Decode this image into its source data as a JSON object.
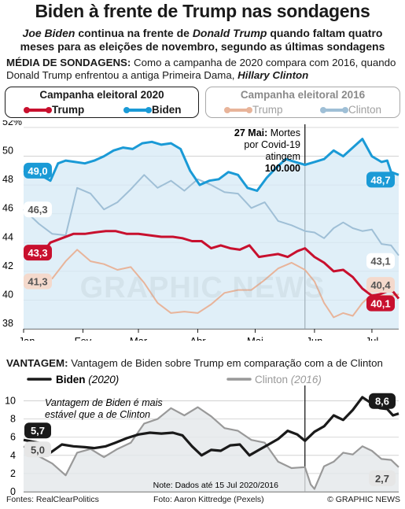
{
  "header": {
    "title": "Biden à frente de Trump nas sondagens",
    "subtitle_parts": [
      "Joe Biden",
      " continua na frente de ",
      "Donald Trump",
      " quando faltam quatro meses para as eleições de novembro, segundo as últimas sondagens"
    ]
  },
  "section1": {
    "label": "MÉDIA DE SONDAGENS:",
    "text": " Como a campanha de 2020 compara com 2016, quando Donald Trump enfrentou a antiga Primeira Dama, ",
    "name": "Hillary Clinton"
  },
  "legend": {
    "box2020": {
      "title": "Campanha eleitoral 2020",
      "trump": "Trump",
      "biden": "Biden"
    },
    "box2016": {
      "title": "Campanha eleitoral 2016",
      "trump": "Trump",
      "clinton": "Clinton"
    }
  },
  "colors": {
    "trump2020": "#c8102e",
    "biden2020": "#1a9ad6",
    "trump2016": "#e8b49a",
    "clinton2016": "#9fbfd6",
    "black": "#1a1a1a",
    "gray2016": "#999999",
    "bidenFill": "#d6e9f5"
  },
  "annotation": {
    "date": "27 Mai:",
    "line1": " Mortes",
    "line2": "por Covid-19",
    "line3": "atingem",
    "value": "100.000"
  },
  "section2": {
    "label": "VANTAGEM:",
    "text": " Vantagem de Biden sobre Trump em comparação com a de Clinton",
    "legend_biden": "Biden",
    "legend_biden_year": "(2020)",
    "legend_clinton": "Clinton",
    "legend_clinton_year": "(2016)",
    "note_line1": "Vantagem de Biden é mais",
    "note_line2": "estável que a de Clinton"
  },
  "note": "Note: Dados até 15 Jul 2020/2016",
  "watermark": "GRAPHIC NEWS",
  "footer": {
    "source": "Fontes: RealClearPolitics",
    "photo": "Foto: Aaron Kittredge (Pexels)",
    "copyright": "© GRAPHIC NEWS"
  },
  "chart_data": [
    {
      "type": "line",
      "title": "Média de sondagens",
      "x_unit": "days since 1 Jan",
      "xticks": [
        "Jan",
        "Fev",
        "Mar",
        "Abr",
        "Mai",
        "Jun",
        "Jul"
      ],
      "xtick_days": [
        0,
        31,
        60,
        91,
        121,
        152,
        182
      ],
      "xlim": [
        0,
        196
      ],
      "yticks": [
        "38",
        "40",
        "42",
        "44",
        "46",
        "48",
        "50",
        "52%"
      ],
      "ylim": [
        38,
        52
      ],
      "event_day": 147,
      "series": [
        {
          "name": "Biden 2020",
          "x": [
            0,
            10,
            14,
            18,
            22,
            27,
            32,
            37,
            42,
            47,
            52,
            57,
            62,
            67,
            72,
            77,
            82,
            87,
            92,
            97,
            102,
            107,
            112,
            117,
            122,
            127,
            132,
            137,
            142,
            147,
            152,
            157,
            162,
            167,
            172,
            177,
            182,
            187,
            190,
            192,
            196
          ],
          "y": [
            49.0,
            48.6,
            48.3,
            49.5,
            49.7,
            49.6,
            49.5,
            49.7,
            50.0,
            50.4,
            50.6,
            50.5,
            50.9,
            51.0,
            50.8,
            50.9,
            50.5,
            49.0,
            48.0,
            48.3,
            48.4,
            48.9,
            48.7,
            47.8,
            47.6,
            48.5,
            49.2,
            49.8,
            49.6,
            49.4,
            49.6,
            49.8,
            50.4,
            50.0,
            50.6,
            51.2,
            50.0,
            49.6,
            49.7,
            48.9,
            48.7
          ]
        },
        {
          "name": "Trump 2020",
          "x": [
            0,
            10,
            14,
            20,
            26,
            32,
            37,
            43,
            48,
            54,
            60,
            66,
            72,
            78,
            83,
            88,
            93,
            98,
            103,
            108,
            113,
            118,
            123,
            128,
            133,
            138,
            143,
            147,
            152,
            157,
            162,
            167,
            172,
            177,
            182,
            186,
            190,
            193,
            196
          ],
          "y": [
            43.3,
            43.3,
            44.0,
            44.3,
            44.6,
            44.6,
            44.7,
            44.8,
            44.8,
            44.6,
            44.6,
            44.5,
            44.4,
            44.4,
            44.3,
            44.1,
            44.1,
            43.6,
            43.8,
            43.6,
            43.5,
            43.8,
            43.0,
            43.1,
            43.2,
            43.0,
            43.4,
            43.6,
            43.0,
            42.6,
            42.0,
            42.1,
            41.6,
            40.8,
            40.3,
            40.4,
            40.6,
            40.6,
            40.1
          ]
        },
        {
          "name": "Clinton 2016",
          "x": [
            0,
            8,
            15,
            22,
            28,
            35,
            42,
            49,
            56,
            63,
            70,
            77,
            84,
            91,
            98,
            105,
            112,
            119,
            126,
            133,
            140,
            147,
            152,
            157,
            162,
            167,
            172,
            177,
            182,
            187,
            192,
            196
          ],
          "y": [
            46.3,
            45.3,
            44.6,
            44.5,
            47.8,
            47.4,
            46.3,
            46.8,
            47.7,
            48.7,
            47.8,
            48.3,
            47.6,
            48.4,
            48.0,
            47.5,
            47.4,
            46.4,
            46.8,
            45.5,
            45.2,
            44.8,
            44.7,
            44.3,
            45.0,
            45.4,
            45.0,
            44.8,
            44.9,
            43.9,
            43.8,
            43.1
          ]
        },
        {
          "name": "Trump 2016",
          "x": [
            0,
            8,
            15,
            22,
            28,
            35,
            42,
            49,
            56,
            63,
            70,
            77,
            84,
            91,
            98,
            105,
            112,
            119,
            126,
            133,
            140,
            147,
            152,
            157,
            162,
            167,
            172,
            177,
            182,
            187,
            192,
            196
          ],
          "y": [
            41.3,
            41.4,
            41.5,
            42.7,
            43.5,
            42.7,
            42.5,
            42.1,
            42.3,
            41.2,
            39.8,
            39.1,
            39.2,
            39.1,
            39.7,
            40.5,
            40.7,
            40.7,
            41.4,
            42.2,
            42.6,
            42.1,
            41.3,
            39.8,
            38.8,
            39.1,
            38.9,
            39.8,
            40.4,
            40.3,
            40.3,
            40.4
          ]
        }
      ],
      "start_labels": {
        "Biden 2020": "49,0",
        "Trump 2020": "43,3",
        "Clinton 2016": "46,3",
        "Trump 2016": "41,3"
      },
      "end_labels": {
        "Biden 2020": "48,7",
        "Trump 2020": "40,1",
        "Clinton 2016": "43,1",
        "Trump 2016": "40,4"
      }
    },
    {
      "type": "line",
      "title": "Vantagem",
      "x_unit": "days since 1 Jan",
      "xlim": [
        0,
        196
      ],
      "yticks": [
        "0",
        "2",
        "4",
        "6",
        "8",
        "10"
      ],
      "ylim": [
        0,
        11
      ],
      "event_day": 147,
      "series": [
        {
          "name": "Biden (2020)",
          "x": [
            0,
            10,
            14,
            20,
            26,
            32,
            37,
            43,
            48,
            54,
            60,
            66,
            72,
            78,
            83,
            88,
            93,
            98,
            103,
            108,
            113,
            118,
            123,
            128,
            133,
            138,
            143,
            147,
            152,
            157,
            162,
            167,
            172,
            177,
            182,
            186,
            190,
            193,
            196
          ],
          "y": [
            5.7,
            5.3,
            4.3,
            5.2,
            5.0,
            4.9,
            4.8,
            5.0,
            5.4,
            5.9,
            6.3,
            6.5,
            6.4,
            6.5,
            6.2,
            5.0,
            4.0,
            4.6,
            4.5,
            5.1,
            5.2,
            4.0,
            4.6,
            5.2,
            5.8,
            6.7,
            6.3,
            5.6,
            6.6,
            7.2,
            8.4,
            7.9,
            9.0,
            10.4,
            9.7,
            9.2,
            9.1,
            8.4,
            8.6
          ]
        },
        {
          "name": "Clinton (2016)",
          "x": [
            0,
            8,
            15,
            22,
            28,
            35,
            42,
            49,
            56,
            63,
            70,
            77,
            84,
            91,
            98,
            105,
            112,
            119,
            126,
            133,
            140,
            147,
            150,
            152,
            157,
            162,
            167,
            172,
            177,
            182,
            187,
            192,
            196
          ],
          "y": [
            5.0,
            3.9,
            3.1,
            1.8,
            4.3,
            4.7,
            3.8,
            4.7,
            5.4,
            7.5,
            8.0,
            9.2,
            8.4,
            9.3,
            8.3,
            7.0,
            6.7,
            5.7,
            5.4,
            3.3,
            2.6,
            2.7,
            0.8,
            0.3,
            2.8,
            3.3,
            4.3,
            4.1,
            5.0,
            4.5,
            3.6,
            3.5,
            2.7
          ]
        }
      ],
      "start_labels": {
        "Biden (2020)": "5,7",
        "Clinton (2016)": "5,0"
      },
      "end_labels": {
        "Biden (2020)": "8,6",
        "Clinton (2016)": "2,7"
      }
    }
  ]
}
